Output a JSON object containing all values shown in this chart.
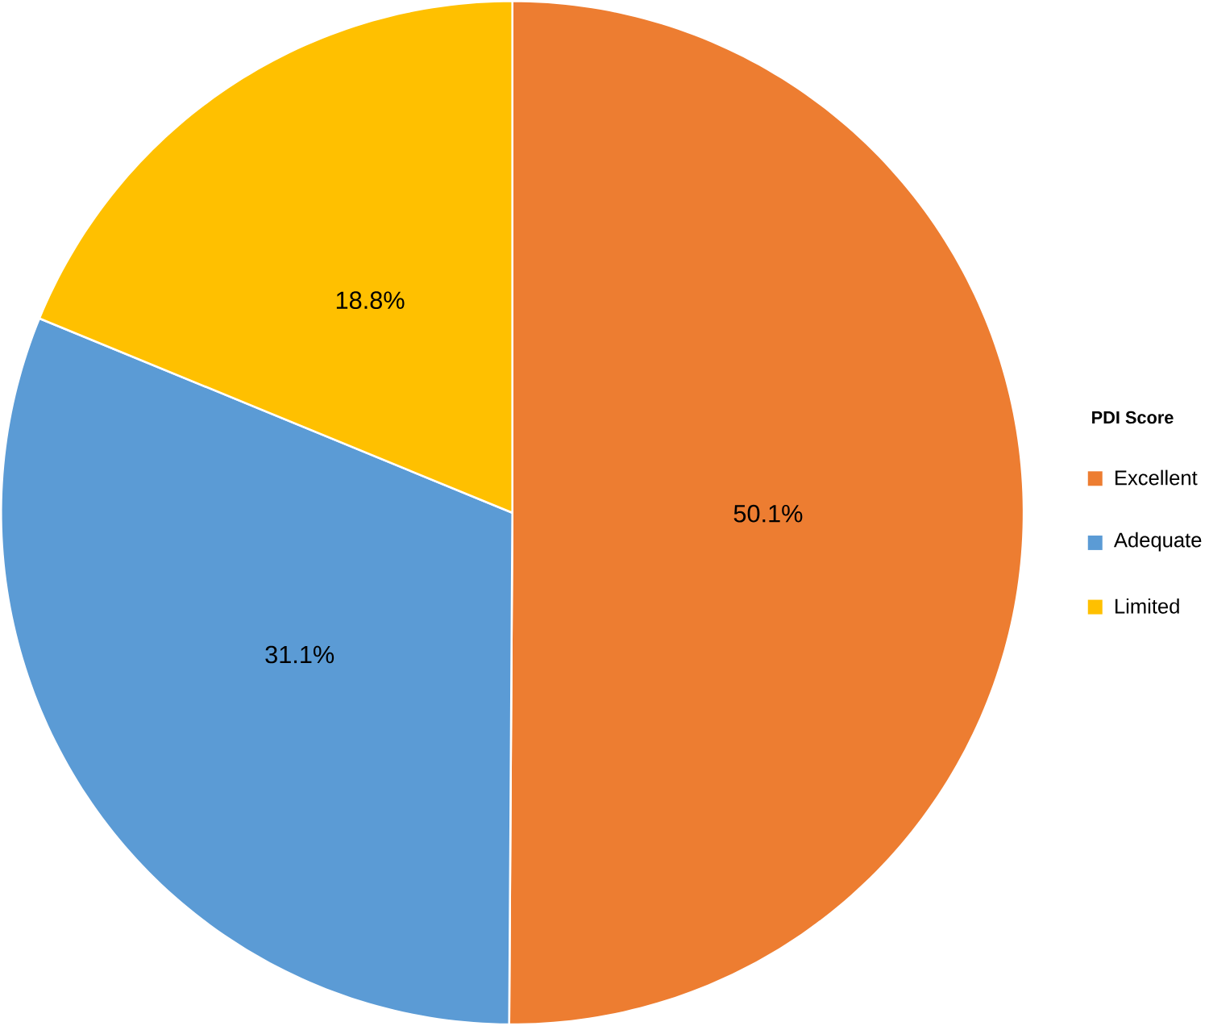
{
  "chart_data": {
    "type": "pie",
    "legend_title": "PDI Score",
    "legend": "right",
    "categories": [
      "Excellent",
      "Adequate",
      "Limited"
    ],
    "values": [
      50.1,
      31.1,
      18.8
    ],
    "value_labels": [
      "50.1%",
      "31.1%",
      "18.8%"
    ],
    "colors": [
      "#ed7d31",
      "#5b9bd5",
      "#ffc000"
    ]
  }
}
